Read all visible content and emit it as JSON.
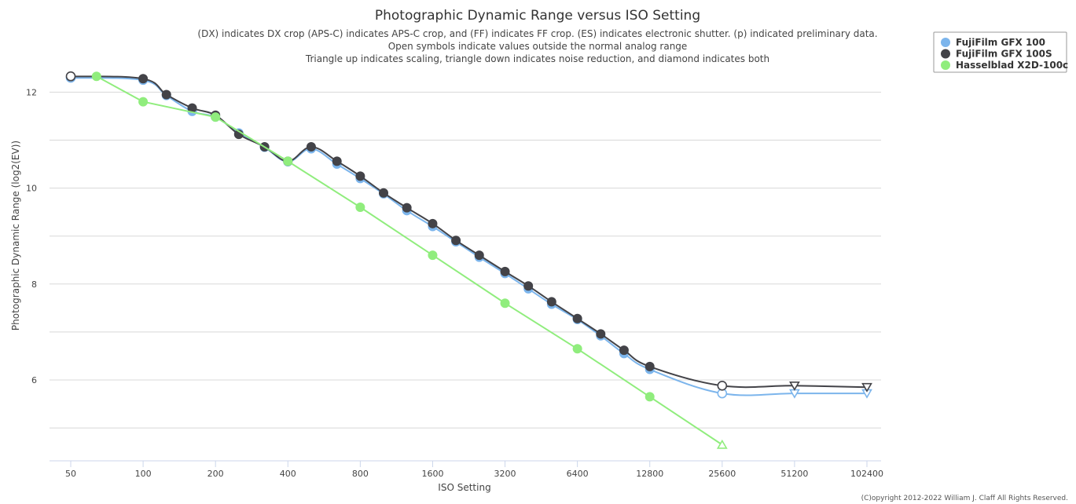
{
  "chart_data": {
    "type": "line",
    "title": "Photographic Dynamic Range versus ISO Setting",
    "subtitle": [
      "(DX) indicates DX crop (APS-C) indicates APS-C crop, and (FF) indicates FF crop. (ES) indicates electronic shutter. (p) indicated preliminary data.",
      "Open symbols indicate values outside the normal analog range",
      "Triangle up indicates scaling, triangle down indicates noise reduction, and diamond indicates both"
    ],
    "xlabel": "ISO Setting",
    "ylabel": "Photographic Dynamic Range (log2(EV))",
    "x_scale": "log2",
    "x_ticks": [
      50,
      100,
      200,
      400,
      800,
      1600,
      3200,
      6400,
      12800,
      25600,
      51200,
      102400
    ],
    "y_ticks": [
      6,
      8,
      10,
      12
    ],
    "ylim": [
      4.2,
      12.9
    ],
    "grid": "horizontal",
    "legend_position": "top-right",
    "credit": "(C)opyright 2012-2022 William J. Claff All Rights Reserved.",
    "series": [
      {
        "name": "FujiFilm GFX 100",
        "color": "#7cb5ec",
        "points": [
          {
            "x": 50,
            "y": 12.3,
            "marker": "open-circle"
          },
          {
            "x": 100,
            "y": 12.25,
            "marker": "circle"
          },
          {
            "x": 125,
            "y": 11.93,
            "marker": "circle"
          },
          {
            "x": 160,
            "y": 11.6,
            "marker": "circle"
          },
          {
            "x": 200,
            "y": 11.48,
            "marker": "circle"
          },
          {
            "x": 250,
            "y": 11.15,
            "marker": "circle"
          },
          {
            "x": 320,
            "y": 10.85,
            "marker": "circle"
          },
          {
            "x": 400,
            "y": 10.55,
            "marker": "circle"
          },
          {
            "x": 500,
            "y": 10.82,
            "marker": "circle"
          },
          {
            "x": 640,
            "y": 10.5,
            "marker": "circle"
          },
          {
            "x": 800,
            "y": 10.2,
            "marker": "circle"
          },
          {
            "x": 1000,
            "y": 9.88,
            "marker": "circle"
          },
          {
            "x": 1250,
            "y": 9.53,
            "marker": "circle"
          },
          {
            "x": 1600,
            "y": 9.2,
            "marker": "circle"
          },
          {
            "x": 2000,
            "y": 8.88,
            "marker": "circle"
          },
          {
            "x": 2500,
            "y": 8.56,
            "marker": "circle"
          },
          {
            "x": 3200,
            "y": 8.22,
            "marker": "circle"
          },
          {
            "x": 4000,
            "y": 7.9,
            "marker": "circle"
          },
          {
            "x": 5000,
            "y": 7.58,
            "marker": "circle"
          },
          {
            "x": 6400,
            "y": 7.26,
            "marker": "circle"
          },
          {
            "x": 8000,
            "y": 6.92,
            "marker": "circle"
          },
          {
            "x": 10000,
            "y": 6.55,
            "marker": "circle"
          },
          {
            "x": 12800,
            "y": 6.22,
            "marker": "circle"
          },
          {
            "x": 25600,
            "y": 5.72,
            "marker": "open-circle"
          },
          {
            "x": 51200,
            "y": 5.72,
            "marker": "open-triangle-down"
          },
          {
            "x": 102400,
            "y": 5.72,
            "marker": "open-triangle-down"
          }
        ]
      },
      {
        "name": "FujiFilm GFX 100S",
        "color": "#434348",
        "points": [
          {
            "x": 50,
            "y": 12.33,
            "marker": "open-circle"
          },
          {
            "x": 100,
            "y": 12.28,
            "marker": "circle"
          },
          {
            "x": 125,
            "y": 11.95,
            "marker": "circle"
          },
          {
            "x": 160,
            "y": 11.67,
            "marker": "circle"
          },
          {
            "x": 200,
            "y": 11.52,
            "marker": "circle"
          },
          {
            "x": 250,
            "y": 11.12,
            "marker": "circle"
          },
          {
            "x": 320,
            "y": 10.86,
            "marker": "circle"
          },
          {
            "x": 400,
            "y": 10.56,
            "marker": "circle"
          },
          {
            "x": 500,
            "y": 10.86,
            "marker": "circle"
          },
          {
            "x": 640,
            "y": 10.56,
            "marker": "circle"
          },
          {
            "x": 800,
            "y": 10.25,
            "marker": "circle"
          },
          {
            "x": 1000,
            "y": 9.9,
            "marker": "circle"
          },
          {
            "x": 1250,
            "y": 9.59,
            "marker": "circle"
          },
          {
            "x": 1600,
            "y": 9.26,
            "marker": "circle"
          },
          {
            "x": 2000,
            "y": 8.91,
            "marker": "circle"
          },
          {
            "x": 2500,
            "y": 8.6,
            "marker": "circle"
          },
          {
            "x": 3200,
            "y": 8.26,
            "marker": "circle"
          },
          {
            "x": 4000,
            "y": 7.96,
            "marker": "circle"
          },
          {
            "x": 5000,
            "y": 7.63,
            "marker": "circle"
          },
          {
            "x": 6400,
            "y": 7.28,
            "marker": "circle"
          },
          {
            "x": 8000,
            "y": 6.96,
            "marker": "circle"
          },
          {
            "x": 10000,
            "y": 6.62,
            "marker": "circle"
          },
          {
            "x": 12800,
            "y": 6.28,
            "marker": "circle"
          },
          {
            "x": 25600,
            "y": 5.88,
            "marker": "open-circle"
          },
          {
            "x": 51200,
            "y": 5.88,
            "marker": "open-triangle-down"
          },
          {
            "x": 102400,
            "y": 5.85,
            "marker": "open-triangle-down"
          }
        ]
      },
      {
        "name": "Hasselblad X2D-100c",
        "color": "#90ed7d",
        "points": [
          {
            "x": 64,
            "y": 12.33,
            "marker": "circle"
          },
          {
            "x": 100,
            "y": 11.8,
            "marker": "circle"
          },
          {
            "x": 200,
            "y": 11.48,
            "marker": "circle"
          },
          {
            "x": 400,
            "y": 10.56,
            "marker": "circle"
          },
          {
            "x": 800,
            "y": 9.6,
            "marker": "circle"
          },
          {
            "x": 1600,
            "y": 8.6,
            "marker": "circle"
          },
          {
            "x": 3200,
            "y": 7.6,
            "marker": "circle"
          },
          {
            "x": 6400,
            "y": 6.65,
            "marker": "circle"
          },
          {
            "x": 12800,
            "y": 5.65,
            "marker": "circle"
          },
          {
            "x": 25600,
            "y": 4.65,
            "marker": "open-triangle-up"
          }
        ]
      }
    ]
  }
}
